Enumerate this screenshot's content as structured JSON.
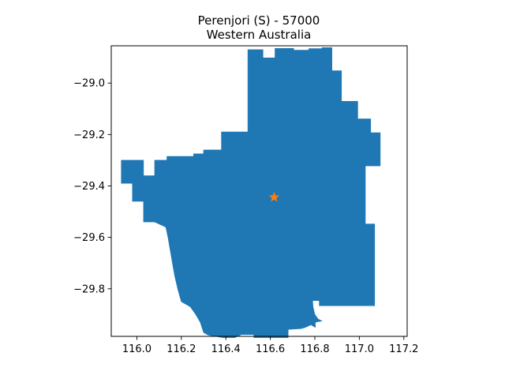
{
  "figure": {
    "title_line1": "Perenjori (S) - 57000",
    "title_line2": "Western Australia"
  },
  "chart_data": {
    "type": "map",
    "region_name": "Perenjori (S) - 57000",
    "state": "Western Australia",
    "xlim": [
      115.885,
      117.215
    ],
    "ylim": [
      -29.985,
      -28.855
    ],
    "x_ticks": [
      116.0,
      116.2,
      116.4,
      116.6,
      116.8,
      117.0,
      117.2
    ],
    "x_tick_labels": [
      "116.0",
      "116.2",
      "116.4",
      "116.6",
      "116.8",
      "117.0",
      "117.2"
    ],
    "y_ticks": [
      -29.0,
      -29.2,
      -29.4,
      -29.6,
      -29.8
    ],
    "y_tick_labels": [
      "−29.0",
      "−29.2",
      "−29.4",
      "−29.6",
      "−29.8"
    ],
    "boundary": [
      [
        116.499,
        -28.87
      ],
      [
        116.567,
        -28.87
      ],
      [
        116.567,
        -28.902
      ],
      [
        116.621,
        -28.902
      ],
      [
        116.621,
        -28.865
      ],
      [
        116.705,
        -28.865
      ],
      [
        116.705,
        -28.872
      ],
      [
        116.773,
        -28.872
      ],
      [
        116.773,
        -28.866
      ],
      [
        116.832,
        -28.866
      ],
      [
        116.832,
        -28.862
      ],
      [
        116.877,
        -28.862
      ],
      [
        116.877,
        -28.952
      ],
      [
        116.92,
        -28.952
      ],
      [
        116.92,
        -29.071
      ],
      [
        116.993,
        -29.071
      ],
      [
        116.993,
        -29.139
      ],
      [
        117.051,
        -29.139
      ],
      [
        117.051,
        -29.193
      ],
      [
        117.094,
        -29.193
      ],
      [
        117.094,
        -29.322
      ],
      [
        117.027,
        -29.322
      ],
      [
        117.027,
        -29.548
      ],
      [
        117.069,
        -29.548
      ],
      [
        117.069,
        -29.866
      ],
      [
        116.82,
        -29.866
      ],
      [
        116.82,
        -29.846
      ],
      [
        116.79,
        -29.846
      ],
      [
        116.792,
        -29.87
      ],
      [
        116.8,
        -29.9
      ],
      [
        116.815,
        -29.918
      ],
      [
        116.832,
        -29.925
      ],
      [
        116.802,
        -29.93
      ],
      [
        116.802,
        -29.95
      ],
      [
        116.782,
        -29.94
      ],
      [
        116.758,
        -29.95
      ],
      [
        116.738,
        -29.955
      ],
      [
        116.68,
        -29.958
      ],
      [
        116.68,
        -29.99
      ],
      [
        116.526,
        -29.99
      ],
      [
        116.526,
        -29.978
      ],
      [
        116.47,
        -29.978
      ],
      [
        116.44,
        -29.99
      ],
      [
        116.386,
        -29.99
      ],
      [
        116.32,
        -29.98
      ],
      [
        116.3,
        -29.97
      ],
      [
        116.285,
        -29.93
      ],
      [
        116.265,
        -29.9
      ],
      [
        116.24,
        -29.87
      ],
      [
        116.2,
        -29.85
      ],
      [
        116.185,
        -29.805
      ],
      [
        116.17,
        -29.75
      ],
      [
        116.16,
        -29.7
      ],
      [
        116.15,
        -29.65
      ],
      [
        116.14,
        -29.6
      ],
      [
        116.13,
        -29.56
      ],
      [
        116.08,
        -29.54
      ],
      [
        116.03,
        -29.54
      ],
      [
        116.03,
        -29.46
      ],
      [
        115.98,
        -29.46
      ],
      [
        115.98,
        -29.39
      ],
      [
        115.93,
        -29.39
      ],
      [
        115.93,
        -29.3
      ],
      [
        116.03,
        -29.3
      ],
      [
        116.03,
        -29.36
      ],
      [
        116.08,
        -29.36
      ],
      [
        116.08,
        -29.3
      ],
      [
        116.135,
        -29.3
      ],
      [
        116.135,
        -29.285
      ],
      [
        116.255,
        -29.285
      ],
      [
        116.255,
        -29.275
      ],
      [
        116.3,
        -29.275
      ],
      [
        116.3,
        -29.26
      ],
      [
        116.38,
        -29.26
      ],
      [
        116.38,
        -29.19
      ],
      [
        116.499,
        -29.19
      ]
    ],
    "marker": {
      "shape": "star",
      "lon": 116.617,
      "lat": -29.444,
      "color": "#ff7f0e"
    },
    "colors": {
      "fill": "#1f77b4",
      "marker": "#ff7f0e",
      "axes": "#000000",
      "background": "#ffffff"
    },
    "grid": false,
    "legend": "none"
  }
}
